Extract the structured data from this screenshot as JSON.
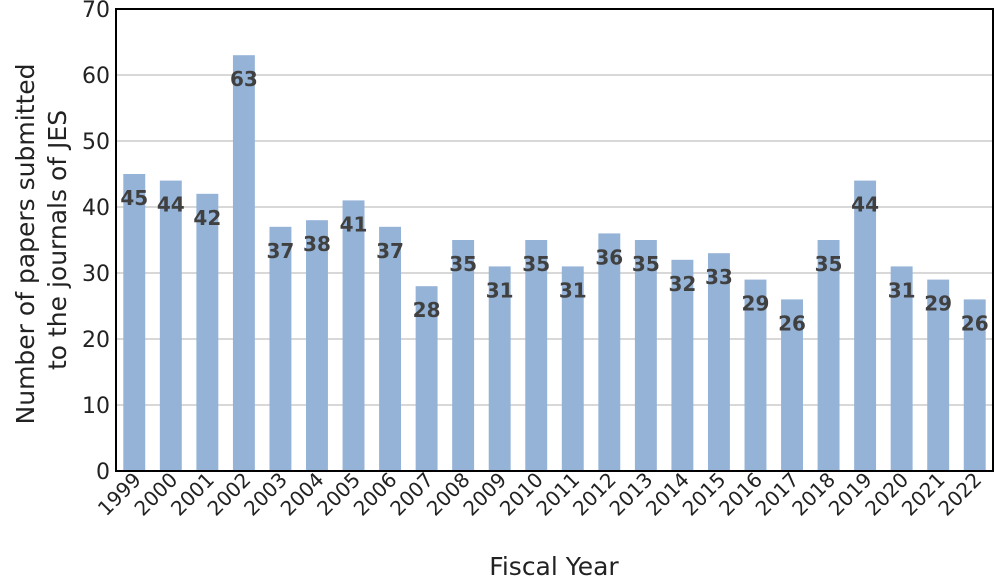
{
  "chart_data": {
    "type": "bar",
    "categories": [
      "1999",
      "2000",
      "2001",
      "2002",
      "2003",
      "2004",
      "2005",
      "2006",
      "2007",
      "2008",
      "2009",
      "2010",
      "2011",
      "2012",
      "2013",
      "2014",
      "2015",
      "2016",
      "2017",
      "2018",
      "2019",
      "2020",
      "2021",
      "2022"
    ],
    "values": [
      45,
      44,
      42,
      63,
      37,
      38,
      41,
      37,
      28,
      35,
      31,
      35,
      31,
      36,
      35,
      32,
      33,
      29,
      26,
      35,
      44,
      31,
      29,
      26
    ],
    "xlabel": "Fiscal Year",
    "ylabel_lines": [
      "Number of papers submitted",
      "to the journals of JES"
    ],
    "ylim": [
      0,
      70
    ],
    "yticks": [
      0,
      10,
      20,
      30,
      40,
      50,
      60,
      70
    ],
    "grid": true,
    "bar_color": "#95b3d7",
    "data_labels": true
  }
}
